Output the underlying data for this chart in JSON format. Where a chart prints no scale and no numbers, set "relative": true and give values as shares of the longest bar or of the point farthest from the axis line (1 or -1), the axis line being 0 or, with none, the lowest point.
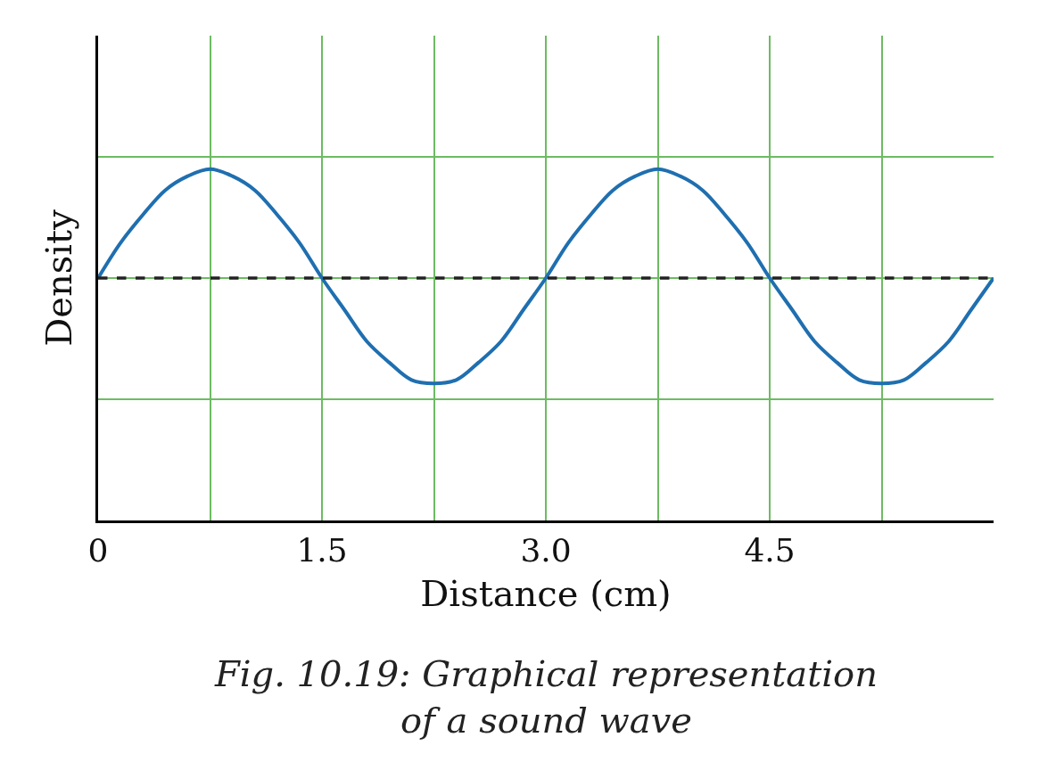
{
  "chart_data": {
    "type": "line",
    "relative": true,
    "xlabel": "Distance (cm)",
    "ylabel": "Density",
    "x": [
      0,
      0.15,
      0.3,
      0.45,
      0.6,
      0.75,
      0.9,
      1.05,
      1.2,
      1.35,
      1.5,
      1.65,
      1.8,
      1.95,
      2.1,
      2.25,
      2.4,
      2.55,
      2.7,
      2.85,
      3.0,
      3.15,
      3.3,
      3.45,
      3.6,
      3.75,
      3.9,
      4.05,
      4.2,
      4.35,
      4.5,
      4.65,
      4.8,
      4.95,
      5.1,
      5.25,
      5.4,
      5.55,
      5.7,
      5.85,
      6.0
    ],
    "series": [
      {
        "color": "#1f6fb0",
        "values": [
          0.69,
          0.79,
          0.87,
          0.94,
          0.98,
          1,
          0.98,
          0.94,
          0.87,
          0.79,
          0.69,
          0.6,
          0.51,
          0.45,
          0.4,
          0.39,
          0.4,
          0.45,
          0.51,
          0.6,
          0.69,
          0.79,
          0.87,
          0.94,
          0.98,
          1,
          0.98,
          0.94,
          0.87,
          0.79,
          0.69,
          0.6,
          0.51,
          0.45,
          0.4,
          0.39,
          0.4,
          0.45,
          0.51,
          0.6,
          0.69
        ]
      }
    ],
    "xlim": [
      0,
      6
    ],
    "xticks": [
      {
        "value": 0,
        "label": "0"
      },
      {
        "value": 0.75,
        "label": null
      },
      {
        "value": 1.5,
        "label": "1.5"
      },
      {
        "value": 2.25,
        "label": null
      },
      {
        "value": 3.0,
        "label": "3.0"
      },
      {
        "value": 3.75,
        "label": null
      },
      {
        "value": 4.5,
        "label": "4.5"
      },
      {
        "value": 5.25,
        "label": null
      }
    ],
    "ref_lines": [
      {
        "axis": "y",
        "value": 0.69,
        "color": "#222222",
        "line_style": "dashed"
      }
    ],
    "grid": true,
    "legend": false,
    "marker": "none",
    "line_style": "solid",
    "annotations": [
      "Fig. 10.19: Graphical representation of a sound wave"
    ]
  }
}
